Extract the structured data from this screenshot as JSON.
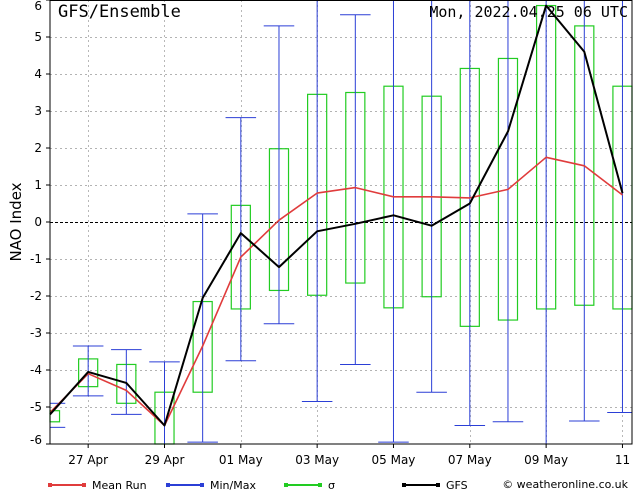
{
  "chart_data": {
    "type": "line",
    "title": "GFS/Ensemble",
    "run_label": "Mon, 2022.04.25 06 UTC",
    "ylabel": "NAO Index",
    "xlabel": "",
    "ylim": [
      -6,
      6
    ],
    "yticks": [
      -6,
      -5,
      -4,
      -3,
      -2,
      -1,
      0,
      1,
      2,
      3,
      4,
      5,
      6
    ],
    "xrange": [
      0.0,
      15.25
    ],
    "x_tick_labels": [
      {
        "x": 1,
        "label": "27 Apr"
      },
      {
        "x": 3,
        "label": "29 Apr"
      },
      {
        "x": 5,
        "label": "01 May"
      },
      {
        "x": 7,
        "label": "03 May"
      },
      {
        "x": 9,
        "label": "05 May"
      },
      {
        "x": 11,
        "label": "07 May"
      },
      {
        "x": 13,
        "label": "09 May"
      },
      {
        "x": 15,
        "label": "11"
      }
    ],
    "grid": true,
    "zero_line": true,
    "legend_position": "bottom",
    "legend": [
      {
        "key": "mean",
        "label": "Mean Run",
        "color": "#e03c3c"
      },
      {
        "key": "minmax",
        "label": "Min/Max",
        "color": "#2b3fd6"
      },
      {
        "key": "sigma",
        "label": "σ",
        "color": "#22cc22"
      },
      {
        "key": "gfs",
        "label": "GFS",
        "color": "#000000"
      }
    ],
    "credit": "© weatheronline.co.uk",
    "x": [
      0.0,
      1.0,
      2.0,
      3.0,
      4.0,
      5.0,
      6.0,
      7.0,
      8.0,
      9.0,
      10.0,
      11.0,
      12.0,
      13.0,
      14.0,
      15.0
    ],
    "series": [
      {
        "name": "Mean Run",
        "key": "mean",
        "values": [
          -5.15,
          -4.1,
          -4.55,
          -5.5,
          -3.35,
          -0.95,
          0.05,
          0.78,
          0.93,
          0.68,
          0.68,
          0.65,
          0.88,
          1.75,
          1.52,
          0.73
        ]
      },
      {
        "name": "GFS",
        "key": "gfs",
        "values": [
          -5.2,
          -4.05,
          -4.35,
          -5.5,
          -2.05,
          -0.3,
          -1.22,
          -0.25,
          -0.05,
          0.18,
          -0.1,
          0.5,
          2.45,
          5.85,
          4.6,
          0.78
        ]
      }
    ],
    "sigma_boxes": [
      {
        "x": 0.0,
        "low": -5.4,
        "high": -5.1
      },
      {
        "x": 1.0,
        "low": -4.45,
        "high": -3.7
      },
      {
        "x": 2.0,
        "low": -4.9,
        "high": -3.85
      },
      {
        "x": 3.0,
        "low": -6.0,
        "high": -4.6
      },
      {
        "x": 4.0,
        "low": -4.6,
        "high": -2.15
      },
      {
        "x": 5.0,
        "low": -2.35,
        "high": 0.45
      },
      {
        "x": 6.0,
        "low": -1.85,
        "high": 1.98
      },
      {
        "x": 7.0,
        "low": -1.98,
        "high": 3.45
      },
      {
        "x": 8.0,
        "low": -1.65,
        "high": 3.5
      },
      {
        "x": 9.0,
        "low": -2.32,
        "high": 3.67
      },
      {
        "x": 10.0,
        "low": -2.02,
        "high": 3.4
      },
      {
        "x": 11.0,
        "low": -2.82,
        "high": 4.15
      },
      {
        "x": 12.0,
        "low": -2.65,
        "high": 4.42
      },
      {
        "x": 13.0,
        "low": -2.35,
        "high": 5.85
      },
      {
        "x": 14.0,
        "low": -2.25,
        "high": 5.3
      },
      {
        "x": 15.0,
        "low": -2.35,
        "high": 3.67
      }
    ],
    "minmax": [
      {
        "x": 0.0,
        "min": -5.55,
        "max": -4.9
      },
      {
        "x": 1.0,
        "min": -4.7,
        "max": -3.35
      },
      {
        "x": 2.0,
        "min": -5.2,
        "max": -3.45
      },
      {
        "x": 3.0,
        "min": -6.0,
        "max": -3.78
      },
      {
        "x": 4.0,
        "min": -5.95,
        "max": 0.22
      },
      {
        "x": 5.0,
        "min": -3.75,
        "max": 2.82
      },
      {
        "x": 6.0,
        "min": -2.75,
        "max": 5.3
      },
      {
        "x": 7.0,
        "min": -4.85,
        "max": 6.0
      },
      {
        "x": 8.0,
        "min": -3.85,
        "max": 5.6
      },
      {
        "x": 9.0,
        "min": -5.95,
        "max": 6.0
      },
      {
        "x": 10.0,
        "min": -4.6,
        "max": 6.0
      },
      {
        "x": 11.0,
        "min": -5.5,
        "max": 6.0
      },
      {
        "x": 12.0,
        "min": -5.4,
        "max": 6.0
      },
      {
        "x": 13.0,
        "min": -6.0,
        "max": 6.0
      },
      {
        "x": 14.0,
        "min": -5.38,
        "max": 6.0
      },
      {
        "x": 15.0,
        "min": -5.15,
        "max": 6.0
      }
    ]
  }
}
